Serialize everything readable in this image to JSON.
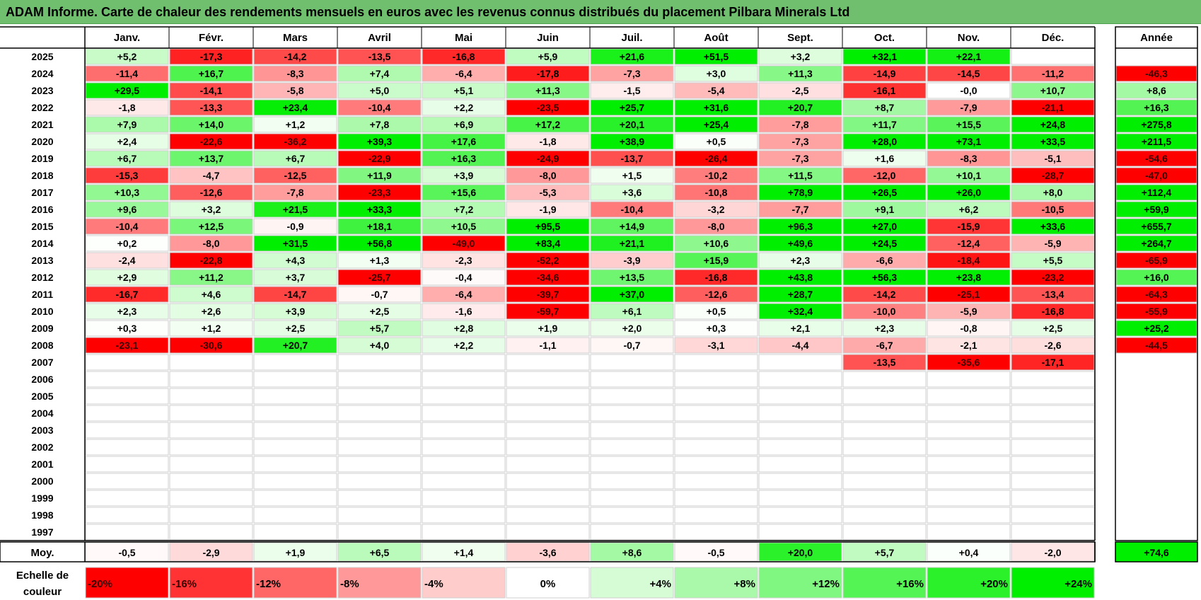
{
  "title": "ADAM Informe. Carte de chaleur des rendements mensuels en euros avec les revenus connus distribués du placement Pilbara Minerals Ltd",
  "chart_data": {
    "type": "heatmap",
    "columns": [
      "Janv.",
      "Févr.",
      "Mars",
      "Avril",
      "Mai",
      "Juin",
      "Juil.",
      "Août",
      "Sept.",
      "Oct.",
      "Nov.",
      "Déc."
    ],
    "year_header": "Année",
    "rows": [
      {
        "label": "2025",
        "values": [
          "+5,2",
          "-17,3",
          "-14,2",
          "-13,5",
          "-16,8",
          "+5,9",
          "+21,6",
          "+51,5",
          "+3,2",
          "+32,1",
          "+22,1",
          ""
        ],
        "year": ""
      },
      {
        "label": "2024",
        "values": [
          "-11,4",
          "+16,7",
          "-8,3",
          "+7,4",
          "-6,4",
          "-17,8",
          "-7,3",
          "+3,0",
          "+11,3",
          "-14,9",
          "-14,5",
          "-11,2"
        ],
        "year": "-46,3"
      },
      {
        "label": "2023",
        "values": [
          "+29,5",
          "-14,1",
          "-5,8",
          "+5,0",
          "+5,1",
          "+11,3",
          "-1,5",
          "-5,4",
          "-2,5",
          "-16,1",
          "-0,0",
          "+10,7"
        ],
        "year": "+8,6"
      },
      {
        "label": "2022",
        "values": [
          "-1,8",
          "-13,3",
          "+23,4",
          "-10,4",
          "+2,2",
          "-23,5",
          "+25,7",
          "+31,6",
          "+20,7",
          "+8,7",
          "-7,9",
          "-21,1"
        ],
        "year": "+16,3"
      },
      {
        "label": "2021",
        "values": [
          "+7,9",
          "+14,0",
          "+1,2",
          "+7,8",
          "+6,9",
          "+17,2",
          "+20,1",
          "+25,4",
          "-7,8",
          "+11,7",
          "+15,5",
          "+24,8"
        ],
        "year": "+275,8"
      },
      {
        "label": "2020",
        "values": [
          "+2,4",
          "-22,6",
          "-36,2",
          "+39,3",
          "+17,6",
          "-1,8",
          "+38,9",
          "+0,5",
          "-7,3",
          "+28,0",
          "+73,1",
          "+33,5"
        ],
        "year": "+211,5"
      },
      {
        "label": "2019",
        "values": [
          "+6,7",
          "+13,7",
          "+6,7",
          "-22,9",
          "+16,3",
          "-24,9",
          "-13,7",
          "-26,4",
          "-7,3",
          "+1,6",
          "-8,3",
          "-5,1"
        ],
        "year": "-54,6"
      },
      {
        "label": "2018",
        "values": [
          "-15,3",
          "-4,7",
          "-12,5",
          "+11,9",
          "+3,9",
          "-8,0",
          "+1,5",
          "-10,2",
          "+11,5",
          "-12,0",
          "+10,1",
          "-28,7"
        ],
        "year": "-47,0"
      },
      {
        "label": "2017",
        "values": [
          "+10,3",
          "-12,6",
          "-7,8",
          "-23,3",
          "+15,6",
          "-5,3",
          "+3,6",
          "-10,8",
          "+78,9",
          "+26,5",
          "+26,0",
          "+8,0"
        ],
        "year": "+112,4"
      },
      {
        "label": "2016",
        "values": [
          "+9,6",
          "+3,2",
          "+21,5",
          "+33,3",
          "+7,2",
          "-1,9",
          "-10,4",
          "-3,2",
          "-7,7",
          "+9,1",
          "+6,2",
          "-10,5"
        ],
        "year": "+59,9"
      },
      {
        "label": "2015",
        "values": [
          "-10,4",
          "+12,5",
          "-0,9",
          "+18,1",
          "+10,5",
          "+95,5",
          "+14,9",
          "-8,0",
          "+96,3",
          "+27,0",
          "-15,9",
          "+33,6"
        ],
        "year": "+655,7"
      },
      {
        "label": "2014",
        "values": [
          "+0,2",
          "-8,0",
          "+31,5",
          "+56,8",
          "-49,0",
          "+83,4",
          "+21,1",
          "+10,6",
          "+49,6",
          "+24,5",
          "-12,4",
          "-5,9"
        ],
        "year": "+264,7"
      },
      {
        "label": "2013",
        "values": [
          "-2,4",
          "-22,8",
          "+4,3",
          "+1,3",
          "-2,3",
          "-52,2",
          "-3,9",
          "+15,9",
          "+2,3",
          "-6,6",
          "-18,4",
          "+5,5"
        ],
        "year": "-65,9"
      },
      {
        "label": "2012",
        "values": [
          "+2,9",
          "+11,2",
          "+3,7",
          "-25,7",
          "-0,4",
          "-34,6",
          "+13,5",
          "-16,8",
          "+43,8",
          "+56,3",
          "+23,8",
          "-23,2"
        ],
        "year": "+16,0"
      },
      {
        "label": "2011",
        "values": [
          "-16,7",
          "+4,6",
          "-14,7",
          "-0,7",
          "-6,4",
          "-39,7",
          "+37,0",
          "-12,6",
          "+28,7",
          "-14,2",
          "-25,1",
          "-13,4"
        ],
        "year": "-64,3"
      },
      {
        "label": "2010",
        "values": [
          "+2,3",
          "+2,6",
          "+3,9",
          "+2,5",
          "-1,6",
          "-59,7",
          "+6,1",
          "+0,5",
          "+32,4",
          "-10,0",
          "-5,9",
          "-16,8"
        ],
        "year": "-55,9"
      },
      {
        "label": "2009",
        "values": [
          "+0,3",
          "+1,2",
          "+2,5",
          "+5,7",
          "+2,8",
          "+1,9",
          "+2,0",
          "+0,3",
          "+2,1",
          "+2,3",
          "-0,8",
          "+2,5"
        ],
        "year": "+25,2"
      },
      {
        "label": "2008",
        "values": [
          "-23,1",
          "-30,6",
          "+20,7",
          "+4,0",
          "+2,2",
          "-1,1",
          "-0,7",
          "-3,1",
          "-4,4",
          "-6,7",
          "-2,1",
          "-2,6"
        ],
        "year": "-44,5"
      },
      {
        "label": "2007",
        "values": [
          "",
          "",
          "",
          "",
          "",
          "",
          "",
          "",
          "",
          "-13,5",
          "-35,6",
          "-17,1"
        ],
        "year": ""
      },
      {
        "label": "2006",
        "values": [
          "",
          "",
          "",
          "",
          "",
          "",
          "",
          "",
          "",
          "",
          "",
          ""
        ],
        "year": ""
      },
      {
        "label": "2005",
        "values": [
          "",
          "",
          "",
          "",
          "",
          "",
          "",
          "",
          "",
          "",
          "",
          ""
        ],
        "year": ""
      },
      {
        "label": "2004",
        "values": [
          "",
          "",
          "",
          "",
          "",
          "",
          "",
          "",
          "",
          "",
          "",
          ""
        ],
        "year": ""
      },
      {
        "label": "2003",
        "values": [
          "",
          "",
          "",
          "",
          "",
          "",
          "",
          "",
          "",
          "",
          "",
          ""
        ],
        "year": ""
      },
      {
        "label": "2002",
        "values": [
          "",
          "",
          "",
          "",
          "",
          "",
          "",
          "",
          "",
          "",
          "",
          ""
        ],
        "year": ""
      },
      {
        "label": "2001",
        "values": [
          "",
          "",
          "",
          "",
          "",
          "",
          "",
          "",
          "",
          "",
          "",
          ""
        ],
        "year": ""
      },
      {
        "label": "2000",
        "values": [
          "",
          "",
          "",
          "",
          "",
          "",
          "",
          "",
          "",
          "",
          "",
          ""
        ],
        "year": ""
      },
      {
        "label": "1999",
        "values": [
          "",
          "",
          "",
          "",
          "",
          "",
          "",
          "",
          "",
          "",
          "",
          ""
        ],
        "year": ""
      },
      {
        "label": "1998",
        "values": [
          "",
          "",
          "",
          "",
          "",
          "",
          "",
          "",
          "",
          "",
          "",
          ""
        ],
        "year": ""
      },
      {
        "label": "1997",
        "values": [
          "",
          "",
          "",
          "",
          "",
          "",
          "",
          "",
          "",
          "",
          "",
          ""
        ],
        "year": ""
      }
    ],
    "average": {
      "label": "Moy.",
      "values": [
        "-0,5",
        "-2,9",
        "+1,9",
        "+6,5",
        "+1,4",
        "-3,6",
        "+8,6",
        "-0,5",
        "+20,0",
        "+5,7",
        "+0,4",
        "-2,0"
      ],
      "year": "+74,6"
    },
    "scale": {
      "label_line1": "Echelle de",
      "label_line2": "couleur",
      "stops": [
        {
          "label": "-20%",
          "value": -20
        },
        {
          "label": "-16%",
          "value": -16
        },
        {
          "label": "-12%",
          "value": -12
        },
        {
          "label": "-8%",
          "value": -8
        },
        {
          "label": "-4%",
          "value": -4
        },
        {
          "label": "0%",
          "value": 0
        },
        {
          "label": "+4%",
          "value": 4
        },
        {
          "label": "+8%",
          "value": 8
        },
        {
          "label": "+12%",
          "value": 12
        },
        {
          "label": "+16%",
          "value": 16
        },
        {
          "label": "+20%",
          "value": 20
        },
        {
          "label": "+24%",
          "value": 24
        }
      ]
    },
    "colors": {
      "negative_max": "#ff0000",
      "positive_max": "#00ee00",
      "neutral": "#ffffff",
      "title_bg": "#6fbf6f"
    }
  }
}
